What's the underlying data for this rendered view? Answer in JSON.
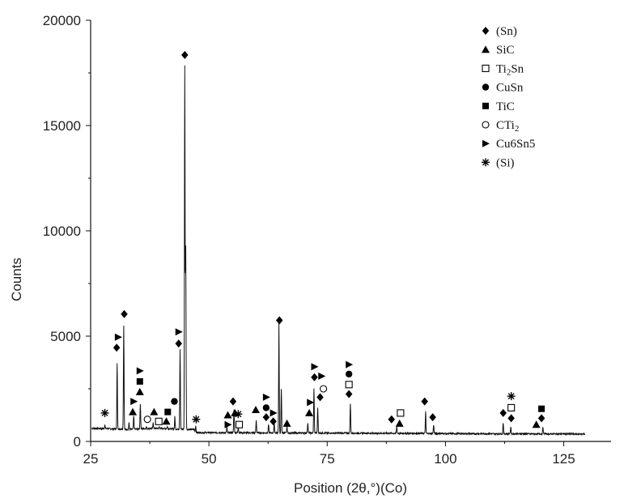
{
  "chart_data": {
    "type": "line",
    "title": "",
    "xlabel": "Position (2θ,°)(Co)",
    "ylabel": "Counts",
    "xlim": [
      25,
      135
    ],
    "ylim": [
      0,
      20000
    ],
    "xticks": [
      25,
      50,
      75,
      100,
      125
    ],
    "yticks": [
      0,
      5000,
      10000,
      15000,
      20000
    ],
    "xtick_labels": [
      "25",
      "50",
      "75",
      "100",
      "125"
    ],
    "ytick_labels": [
      "0",
      "5000",
      "10000",
      "15000",
      "20000"
    ],
    "grid": false,
    "legend_position": "top-right",
    "series": [
      {
        "peaks": [
          {
            "x": 28.0,
            "y": 800
          },
          {
            "x": 30.6,
            "y": 3700
          },
          {
            "x": 32.0,
            "y": 5500
          },
          {
            "x": 33.1,
            "y": 900
          },
          {
            "x": 34.1,
            "y": 1200
          },
          {
            "x": 35.5,
            "y": 1800
          },
          {
            "x": 36.8,
            "y": 700
          },
          {
            "x": 38.2,
            "y": 900
          },
          {
            "x": 39.5,
            "y": 700
          },
          {
            "x": 41.2,
            "y": 700
          },
          {
            "x": 42.8,
            "y": 1200
          },
          {
            "x": 43.9,
            "y": 4400
          },
          {
            "x": 44.9,
            "y": 17800
          },
          {
            "x": 45.1,
            "y": 9200
          },
          {
            "x": 47.2,
            "y": 750
          },
          {
            "x": 53.8,
            "y": 700
          },
          {
            "x": 55.3,
            "y": 1500
          },
          {
            "x": 56.2,
            "y": 700
          },
          {
            "x": 60.0,
            "y": 1000
          },
          {
            "x": 62.6,
            "y": 800
          },
          {
            "x": 63.8,
            "y": 900
          },
          {
            "x": 64.8,
            "y": 5600
          },
          {
            "x": 65.3,
            "y": 2500
          },
          {
            "x": 66.5,
            "y": 700
          },
          {
            "x": 70.9,
            "y": 900
          },
          {
            "x": 72.2,
            "y": 2500
          },
          {
            "x": 73.0,
            "y": 1600
          },
          {
            "x": 79.9,
            "y": 1800
          },
          {
            "x": 89.7,
            "y": 700
          },
          {
            "x": 95.8,
            "y": 1400
          },
          {
            "x": 97.5,
            "y": 800
          },
          {
            "x": 112.2,
            "y": 900
          },
          {
            "x": 113.8,
            "y": 700
          },
          {
            "x": 120.6,
            "y": 700
          }
        ]
      }
    ],
    "legend": [
      {
        "marker": "diamond",
        "label": "(Sn)"
      },
      {
        "marker": "triangle",
        "label": "SiC"
      },
      {
        "marker": "open-square",
        "label": "Ti2Sn"
      },
      {
        "marker": "circle",
        "label": "CuSn"
      },
      {
        "marker": "square",
        "label": "TiC"
      },
      {
        "marker": "open-circle",
        "label": "CTi2"
      },
      {
        "marker": "right-triangle",
        "label": "Cu6Sn5"
      },
      {
        "marker": "asterisk",
        "label": "(Si)"
      }
    ],
    "annotations": [
      {
        "marker": "asterisk",
        "x": 28.0,
        "y": 1350
      },
      {
        "marker": "diamond",
        "x": 30.5,
        "y": 4450
      },
      {
        "marker": "right-triangle",
        "x": 30.8,
        "y": 4950
      },
      {
        "marker": "diamond",
        "x": 32.1,
        "y": 6050
      },
      {
        "marker": "triangle",
        "x": 33.9,
        "y": 1400
      },
      {
        "marker": "right-triangle",
        "x": 34.1,
        "y": 1900
      },
      {
        "marker": "triangle",
        "x": 35.4,
        "y": 2350
      },
      {
        "marker": "square",
        "x": 35.4,
        "y": 2850
      },
      {
        "marker": "right-triangle",
        "x": 35.4,
        "y": 3350
      },
      {
        "marker": "open-circle",
        "x": 37.0,
        "y": 1050
      },
      {
        "marker": "triangle",
        "x": 38.4,
        "y": 1400
      },
      {
        "marker": "open-square",
        "x": 39.4,
        "y": 950
      },
      {
        "marker": "triangle",
        "x": 41.0,
        "y": 950
      },
      {
        "marker": "square",
        "x": 41.3,
        "y": 1400
      },
      {
        "marker": "circle",
        "x": 42.7,
        "y": 1900
      },
      {
        "marker": "diamond",
        "x": 43.6,
        "y": 4650
      },
      {
        "marker": "right-triangle",
        "x": 43.6,
        "y": 5200
      },
      {
        "marker": "diamond",
        "x": 44.9,
        "y": 18350
      },
      {
        "marker": "asterisk",
        "x": 47.3,
        "y": 1050
      },
      {
        "marker": "triangle",
        "x": 54.0,
        "y": 1250
      },
      {
        "marker": "right-triangle",
        "x": 54.0,
        "y": 800
      },
      {
        "marker": "diamond",
        "x": 55.1,
        "y": 1900
      },
      {
        "marker": "triangle",
        "x": 55.5,
        "y": 1350
      },
      {
        "marker": "asterisk",
        "x": 56.2,
        "y": 1300
      },
      {
        "marker": "open-square",
        "x": 56.4,
        "y": 800
      },
      {
        "marker": "triangle",
        "x": 59.9,
        "y": 1500
      },
      {
        "marker": "right-triangle",
        "x": 62.1,
        "y": 2100
      },
      {
        "marker": "circle",
        "x": 62.1,
        "y": 1600
      },
      {
        "marker": "diamond",
        "x": 62.1,
        "y": 1150
      },
      {
        "marker": "right-triangle",
        "x": 63.6,
        "y": 1350
      },
      {
        "marker": "diamond",
        "x": 63.6,
        "y": 950
      },
      {
        "marker": "diamond",
        "x": 64.9,
        "y": 5750
      },
      {
        "marker": "triangle",
        "x": 66.5,
        "y": 850
      },
      {
        "marker": "right-triangle",
        "x": 71.4,
        "y": 1850
      },
      {
        "marker": "triangle",
        "x": 71.2,
        "y": 1350
      },
      {
        "marker": "right-triangle",
        "x": 72.3,
        "y": 3550
      },
      {
        "marker": "diamond",
        "x": 72.3,
        "y": 3050
      },
      {
        "marker": "right-triangle",
        "x": 73.8,
        "y": 3100
      },
      {
        "marker": "diamond",
        "x": 73.5,
        "y": 2100
      },
      {
        "marker": "open-circle",
        "x": 74.2,
        "y": 2500
      },
      {
        "marker": "right-triangle",
        "x": 79.6,
        "y": 3650
      },
      {
        "marker": "circle",
        "x": 79.6,
        "y": 3200
      },
      {
        "marker": "open-square",
        "x": 79.6,
        "y": 2700
      },
      {
        "marker": "diamond",
        "x": 79.6,
        "y": 2250
      },
      {
        "marker": "diamond",
        "x": 88.6,
        "y": 1050
      },
      {
        "marker": "open-square",
        "x": 90.5,
        "y": 1350
      },
      {
        "marker": "triangle",
        "x": 90.3,
        "y": 850
      },
      {
        "marker": "diamond",
        "x": 95.6,
        "y": 1900
      },
      {
        "marker": "diamond",
        "x": 97.3,
        "y": 1150
      },
      {
        "marker": "diamond",
        "x": 112.2,
        "y": 1350
      },
      {
        "marker": "asterisk",
        "x": 113.9,
        "y": 2150
      },
      {
        "marker": "open-square",
        "x": 113.9,
        "y": 1600
      },
      {
        "marker": "diamond",
        "x": 113.9,
        "y": 1100
      },
      {
        "marker": "triangle",
        "x": 119.2,
        "y": 800
      },
      {
        "marker": "square",
        "x": 120.3,
        "y": 1550
      },
      {
        "marker": "diamond",
        "x": 120.3,
        "y": 1100
      }
    ]
  }
}
